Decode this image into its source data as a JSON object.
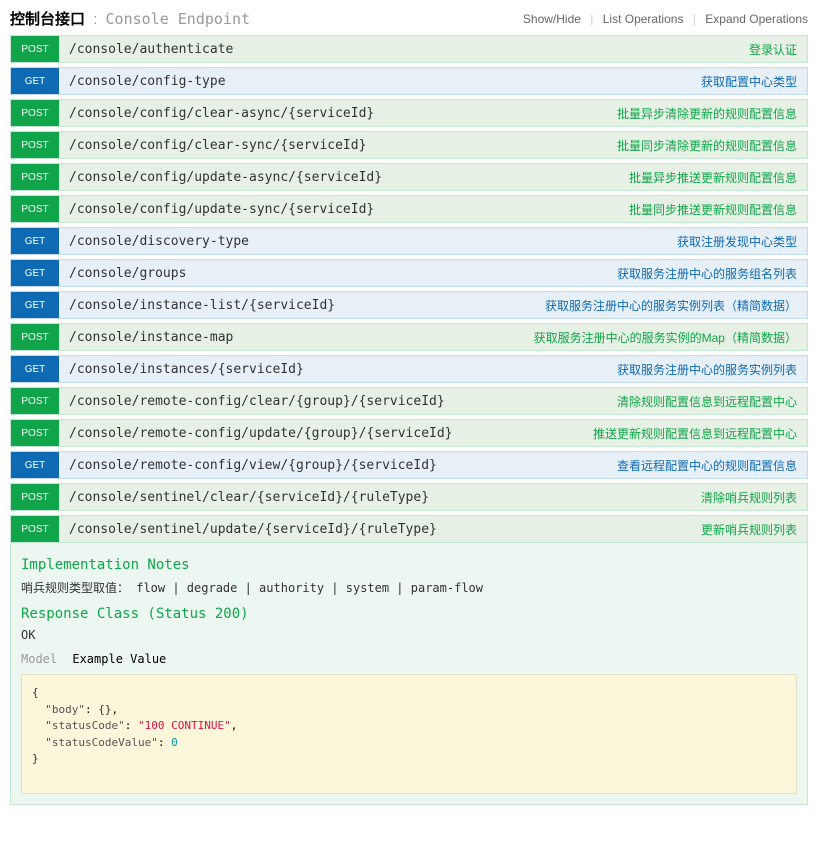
{
  "header": {
    "title_cn": "控制台接口",
    "separator": ":",
    "subtitle": "Console Endpoint",
    "actions": {
      "show_hide": "Show/Hide",
      "list_ops": "List Operations",
      "expand_ops": "Expand Operations"
    }
  },
  "endpoints": [
    {
      "method": "POST",
      "path": "/console/authenticate",
      "desc": "登录认证"
    },
    {
      "method": "GET",
      "path": "/console/config-type",
      "desc": "获取配置中心类型"
    },
    {
      "method": "POST",
      "path": "/console/config/clear-async/{serviceId}",
      "desc": "批量异步清除更新的规则配置信息"
    },
    {
      "method": "POST",
      "path": "/console/config/clear-sync/{serviceId}",
      "desc": "批量同步清除更新的规则配置信息"
    },
    {
      "method": "POST",
      "path": "/console/config/update-async/{serviceId}",
      "desc": "批量异步推送更新规则配置信息"
    },
    {
      "method": "POST",
      "path": "/console/config/update-sync/{serviceId}",
      "desc": "批量同步推送更新规则配置信息"
    },
    {
      "method": "GET",
      "path": "/console/discovery-type",
      "desc": "获取注册发现中心类型"
    },
    {
      "method": "GET",
      "path": "/console/groups",
      "desc": "获取服务注册中心的服务组名列表"
    },
    {
      "method": "GET",
      "path": "/console/instance-list/{serviceId}",
      "desc": "获取服务注册中心的服务实例列表（精简数据）"
    },
    {
      "method": "POST",
      "path": "/console/instance-map",
      "desc": "获取服务注册中心的服务实例的Map（精简数据）"
    },
    {
      "method": "GET",
      "path": "/console/instances/{serviceId}",
      "desc": "获取服务注册中心的服务实例列表"
    },
    {
      "method": "POST",
      "path": "/console/remote-config/clear/{group}/{serviceId}",
      "desc": "清除规则配置信息到远程配置中心"
    },
    {
      "method": "POST",
      "path": "/console/remote-config/update/{group}/{serviceId}",
      "desc": "推送更新规则配置信息到远程配置中心"
    },
    {
      "method": "GET",
      "path": "/console/remote-config/view/{group}/{serviceId}",
      "desc": "查看远程配置中心的规则配置信息"
    },
    {
      "method": "POST",
      "path": "/console/sentinel/clear/{serviceId}/{ruleType}",
      "desc": "清除哨兵规则列表"
    },
    {
      "method": "POST",
      "path": "/console/sentinel/update/{serviceId}/{ruleType}",
      "desc": "更新哨兵规则列表"
    }
  ],
  "detail": {
    "impl_notes_heading": "Implementation Notes",
    "impl_notes_text": "哨兵规则类型取值： flow | degrade | authority | system | param-flow",
    "response_heading": "Response Class (Status 200)",
    "response_ok": "OK",
    "model_label": "Model",
    "example_label": "Example Value",
    "example_json": {
      "body_key": "\"body\"",
      "body_val": "{}",
      "status_code_key": "\"statusCode\"",
      "status_code_val": "\"100 CONTINUE\"",
      "status_code_value_key": "\"statusCodeValue\"",
      "status_code_value_val": "0"
    }
  },
  "colors": {
    "post_bg": "#e7f0e4",
    "post_border": "#c3e8d1",
    "post_badge": "#10a54a",
    "get_bg": "#e7f0f7",
    "get_border": "#c3d9ec",
    "get_badge": "#0f6ab4",
    "code_bg": "#fcf6db",
    "code_border": "#e5e0c6"
  }
}
